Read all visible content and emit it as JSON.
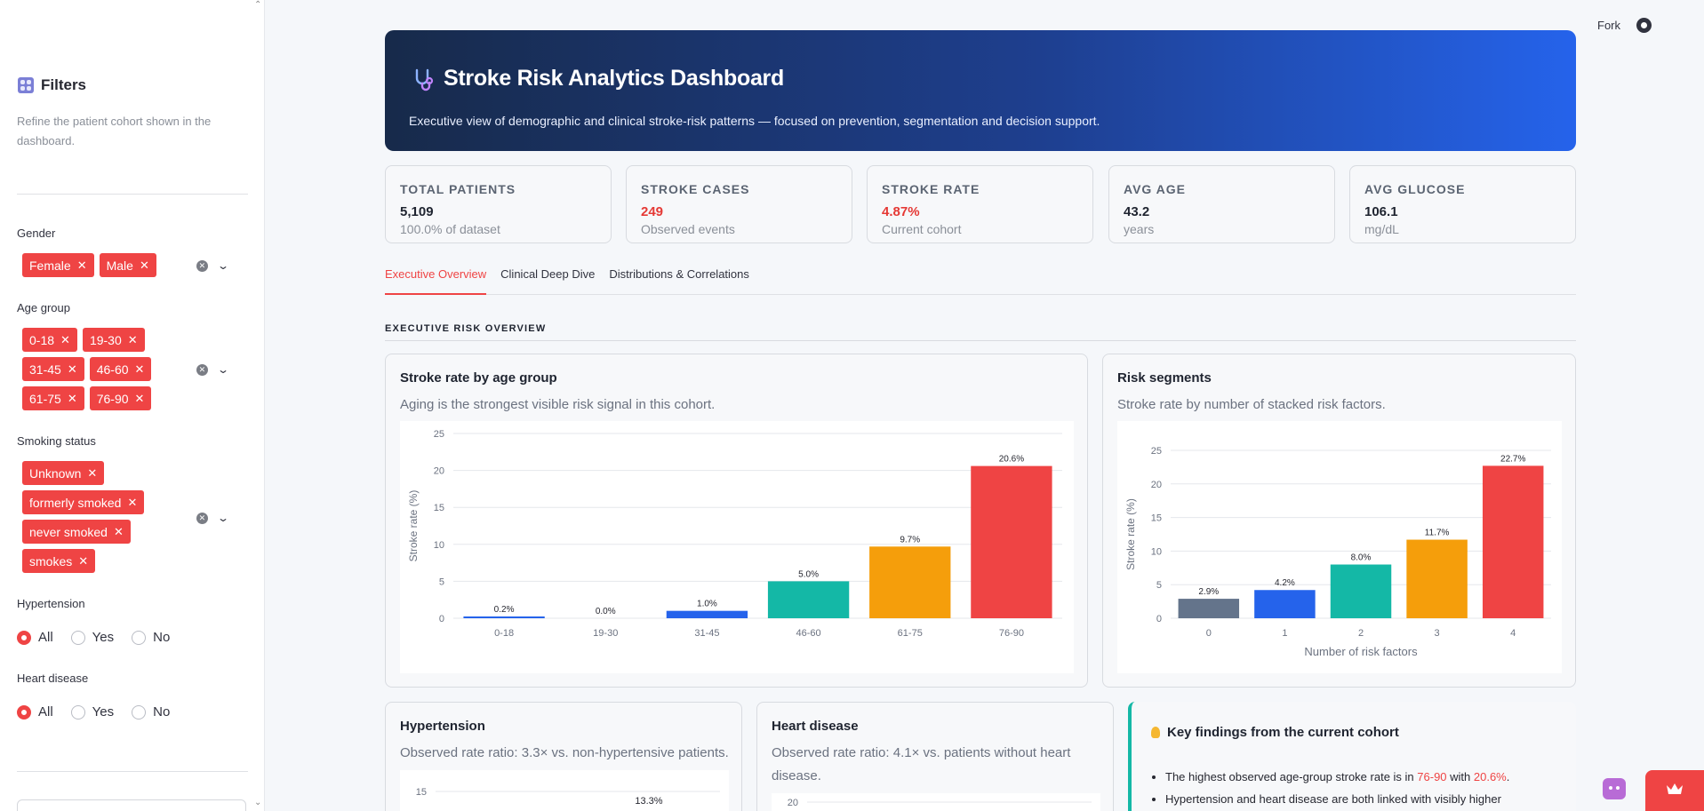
{
  "sidebar": {
    "title": "Filters",
    "subtitle": "Refine the patient cohort shown in the dashboard.",
    "gender": {
      "label": "Gender",
      "tags": [
        "Female",
        "Male"
      ]
    },
    "age_group": {
      "label": "Age group",
      "tags": [
        "0-18",
        "19-30",
        "31-45",
        "46-60",
        "61-75",
        "76-90"
      ]
    },
    "smoking": {
      "label": "Smoking status",
      "tags": [
        "Unknown",
        "formerly smoked",
        "never smoked",
        "smokes"
      ]
    },
    "hypertension": {
      "label": "Hypertension",
      "options": [
        "All",
        "Yes",
        "No"
      ],
      "selected": "All"
    },
    "heart_disease": {
      "label": "Heart disease",
      "options": [
        "All",
        "Yes",
        "No"
      ],
      "selected": "All"
    }
  },
  "toolbar": {
    "fork_label": "Fork"
  },
  "hero": {
    "title": "Stroke Risk Analytics Dashboard",
    "subtitle": "Executive view of demographic and clinical stroke-risk patterns — focused on prevention, segmentation and decision support."
  },
  "kpis": [
    {
      "label": "TOTAL PATIENTS",
      "value": "5,109",
      "sub": "100.0% of dataset",
      "highlight": false
    },
    {
      "label": "STROKE CASES",
      "value": "249",
      "sub": "Observed events",
      "highlight": true
    },
    {
      "label": "STROKE RATE",
      "value": "4.87%",
      "sub": "Current cohort",
      "highlight": true
    },
    {
      "label": "AVG AGE",
      "value": "43.2",
      "sub": "years",
      "highlight": false
    },
    {
      "label": "AVG GLUCOSE",
      "value": "106.1",
      "sub": "mg/dL",
      "highlight": false
    }
  ],
  "tabs": [
    "Executive Overview",
    "Clinical Deep Dive",
    "Distributions & Correlations"
  ],
  "active_tab": "Executive Overview",
  "section_title": "EXECUTIVE RISK OVERVIEW",
  "cards": {
    "age": {
      "title": "Stroke rate by age group",
      "subtitle": "Aging is the strongest visible risk signal in this cohort."
    },
    "risk": {
      "title": "Risk segments",
      "subtitle": "Stroke rate by number of stacked risk factors."
    },
    "hyper": {
      "title": "Hypertension",
      "subtitle": "Observed rate ratio: 3.3× vs. non-hypertensive patients."
    },
    "heart": {
      "title": "Heart disease",
      "subtitle": "Observed rate ratio: 4.1× vs. patients without heart disease."
    }
  },
  "findings": {
    "title": "Key findings from the current cohort",
    "b1_pre": "The highest observed age-group stroke rate is in ",
    "b1_group": "76-90",
    "b1_mid": " with ",
    "b1_rate": "20.6%",
    "b1_post": ".",
    "b2": "Hypertension and heart disease are both linked with visibly higher"
  },
  "colors": {
    "accent": "#ef4444",
    "blue": "#2563eb",
    "teal": "#14b8a6",
    "amber": "#f59e0b",
    "slate": "#64748b"
  },
  "chart_data": [
    {
      "type": "bar",
      "categories": [
        "0-18",
        "19-30",
        "31-45",
        "46-60",
        "61-75",
        "76-90"
      ],
      "values": [
        0.2,
        0.0,
        1.0,
        5.0,
        9.7,
        20.6
      ],
      "labels": [
        "0.2%",
        "0.0%",
        "1.0%",
        "5.0%",
        "9.7%",
        "20.6%"
      ],
      "colors": [
        "#2563eb",
        "#2563eb",
        "#2563eb",
        "#14b8a6",
        "#f59e0b",
        "#ef4444"
      ],
      "xlabel": "",
      "ylabel": "Stroke rate (%)",
      "yticks": [
        0,
        5,
        10,
        15,
        20,
        25
      ],
      "ylim": [
        0,
        25
      ]
    },
    {
      "type": "bar",
      "categories": [
        "0",
        "1",
        "2",
        "3",
        "4"
      ],
      "values": [
        2.9,
        4.2,
        8.0,
        11.7,
        22.7
      ],
      "labels": [
        "2.9%",
        "4.2%",
        "8.0%",
        "11.7%",
        "22.7%"
      ],
      "colors": [
        "#64748b",
        "#2563eb",
        "#14b8a6",
        "#f59e0b",
        "#ef4444"
      ],
      "xlabel": "Number of risk factors",
      "ylabel": "Stroke rate (%)",
      "yticks": [
        0,
        5,
        10,
        15,
        20,
        25
      ],
      "ylim": [
        0,
        25
      ]
    },
    {
      "type": "bar",
      "partial": true,
      "visible_ticks": [
        "15"
      ],
      "visible_labels": [
        "13.3%"
      ]
    },
    {
      "type": "bar",
      "partial": true,
      "visible_ticks": [
        "20"
      ]
    }
  ]
}
